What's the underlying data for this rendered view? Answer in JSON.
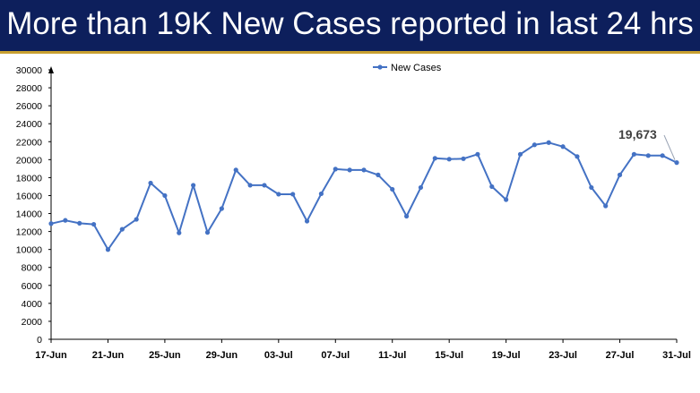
{
  "header": {
    "title": "More than 19K New Cases reported in last 24 hrs"
  },
  "colors": {
    "header_bg": "#0d1f5c",
    "accent_line": "#c8a030",
    "series": "#4472c4"
  },
  "chart_data": {
    "type": "line",
    "title": "More than 19K New Cases reported in last 24 hrs",
    "xlabel": "",
    "ylabel": "",
    "ylim": [
      0,
      30000
    ],
    "yticks": [
      0,
      2000,
      4000,
      6000,
      8000,
      10000,
      12000,
      14000,
      16000,
      18000,
      20000,
      22000,
      24000,
      26000,
      28000,
      30000
    ],
    "xtick_labels": [
      "17-Jun",
      "21-Jun",
      "25-Jun",
      "29-Jun",
      "03-Jul",
      "07-Jul",
      "11-Jul",
      "15-Jul",
      "19-Jul",
      "23-Jul",
      "27-Jul",
      "31-Jul"
    ],
    "grid": false,
    "legend": {
      "position": "top-center",
      "entries": [
        "New Cases"
      ]
    },
    "annotation": {
      "label": "19,673",
      "target": "31-Jul"
    },
    "categories": [
      "17-Jun",
      "18-Jun",
      "19-Jun",
      "20-Jun",
      "21-Jun",
      "22-Jun",
      "23-Jun",
      "24-Jun",
      "25-Jun",
      "26-Jun",
      "27-Jun",
      "28-Jun",
      "29-Jun",
      "30-Jun",
      "01-Jul",
      "02-Jul",
      "03-Jul",
      "04-Jul",
      "05-Jul",
      "06-Jul",
      "07-Jul",
      "08-Jul",
      "09-Jul",
      "10-Jul",
      "11-Jul",
      "12-Jul",
      "13-Jul",
      "14-Jul",
      "15-Jul",
      "16-Jul",
      "17-Jul",
      "18-Jul",
      "19-Jul",
      "20-Jul",
      "21-Jul",
      "22-Jul",
      "23-Jul",
      "24-Jul",
      "25-Jul",
      "26-Jul",
      "27-Jul",
      "28-Jul",
      "29-Jul",
      "30-Jul",
      "31-Jul"
    ],
    "series": [
      {
        "name": "New Cases",
        "values": [
          12881,
          13240,
          12920,
          12800,
          9990,
          12250,
          13350,
          17400,
          16000,
          11850,
          17150,
          11900,
          14550,
          18850,
          17150,
          17150,
          16150,
          16150,
          13150,
          16200,
          18950,
          18850,
          18850,
          18300,
          16700,
          13700,
          16900,
          20150,
          20050,
          20100,
          20600,
          17000,
          15550,
          20600,
          21650,
          21900,
          21450,
          20350,
          16900,
          14850,
          18300,
          20600,
          20450,
          20450,
          19673
        ]
      }
    ]
  }
}
